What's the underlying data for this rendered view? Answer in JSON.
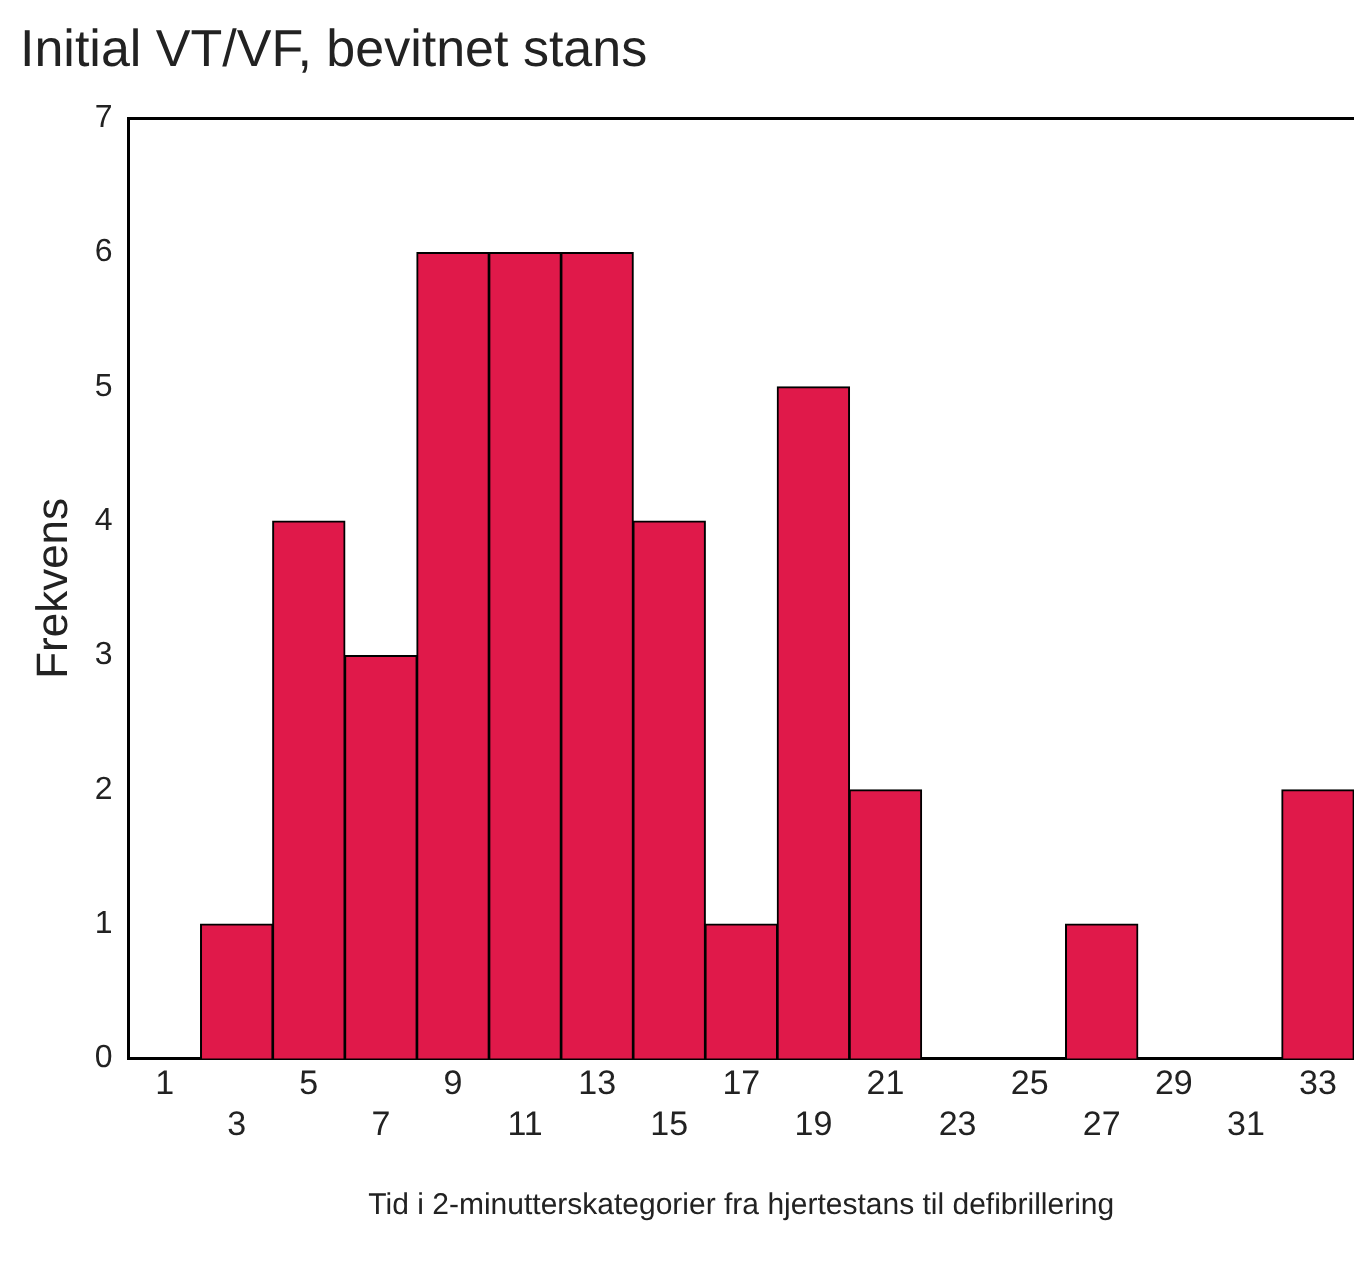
{
  "chart_data": {
    "type": "bar",
    "title": "Initial VT/VF, bevitnet stans",
    "xlabel": "Tid i 2-minutterskategorier fra hjertestans til defibrillering",
    "ylabel": "Frekvens",
    "categories": [
      "1",
      "3",
      "5",
      "7",
      "9",
      "11",
      "13",
      "15",
      "17",
      "19",
      "21",
      "23",
      "25",
      "27",
      "29",
      "31",
      "33"
    ],
    "values": [
      0,
      1,
      4,
      3,
      6,
      6,
      6,
      4,
      1,
      5,
      2,
      0,
      0,
      1,
      0,
      0,
      2
    ],
    "color": "#e0194a",
    "ylim": [
      0,
      7
    ],
    "yticks": [
      0,
      1,
      2,
      3,
      4,
      5,
      6,
      7
    ],
    "grid": false,
    "legend": false
  }
}
